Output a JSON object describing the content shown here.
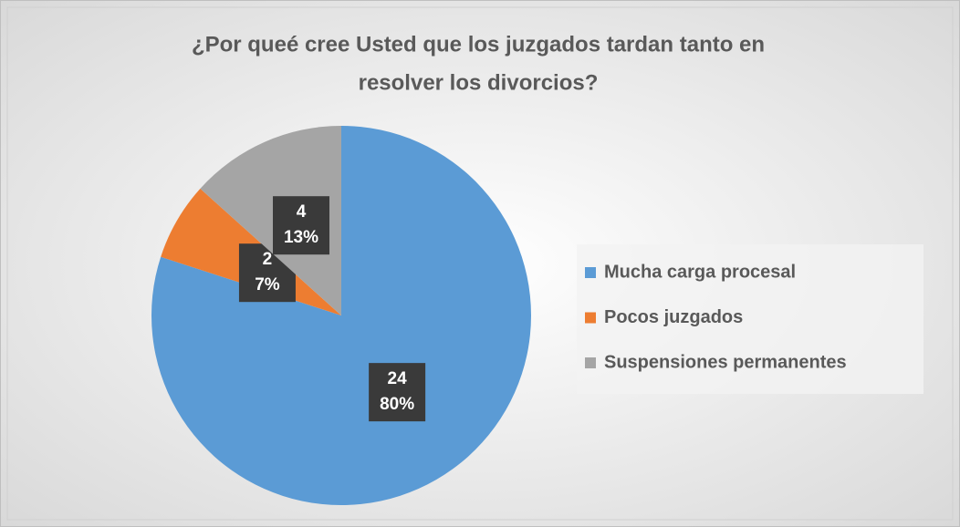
{
  "chart_data": {
    "type": "pie",
    "title": [
      "¿Por queé cree Usted que los juzgados tardan tanto en",
      "resolver los divorcios?"
    ],
    "categories": [
      "Mucha carga procesal",
      "Pocos juzgados",
      "Suspensiones permanentes"
    ],
    "values": [
      24,
      2,
      4
    ],
    "percent_labels": [
      "80%",
      "7%",
      "13%"
    ],
    "colors": [
      "#5b9bd5",
      "#ed7d31",
      "#a5a5a5"
    ],
    "legend": "right"
  }
}
